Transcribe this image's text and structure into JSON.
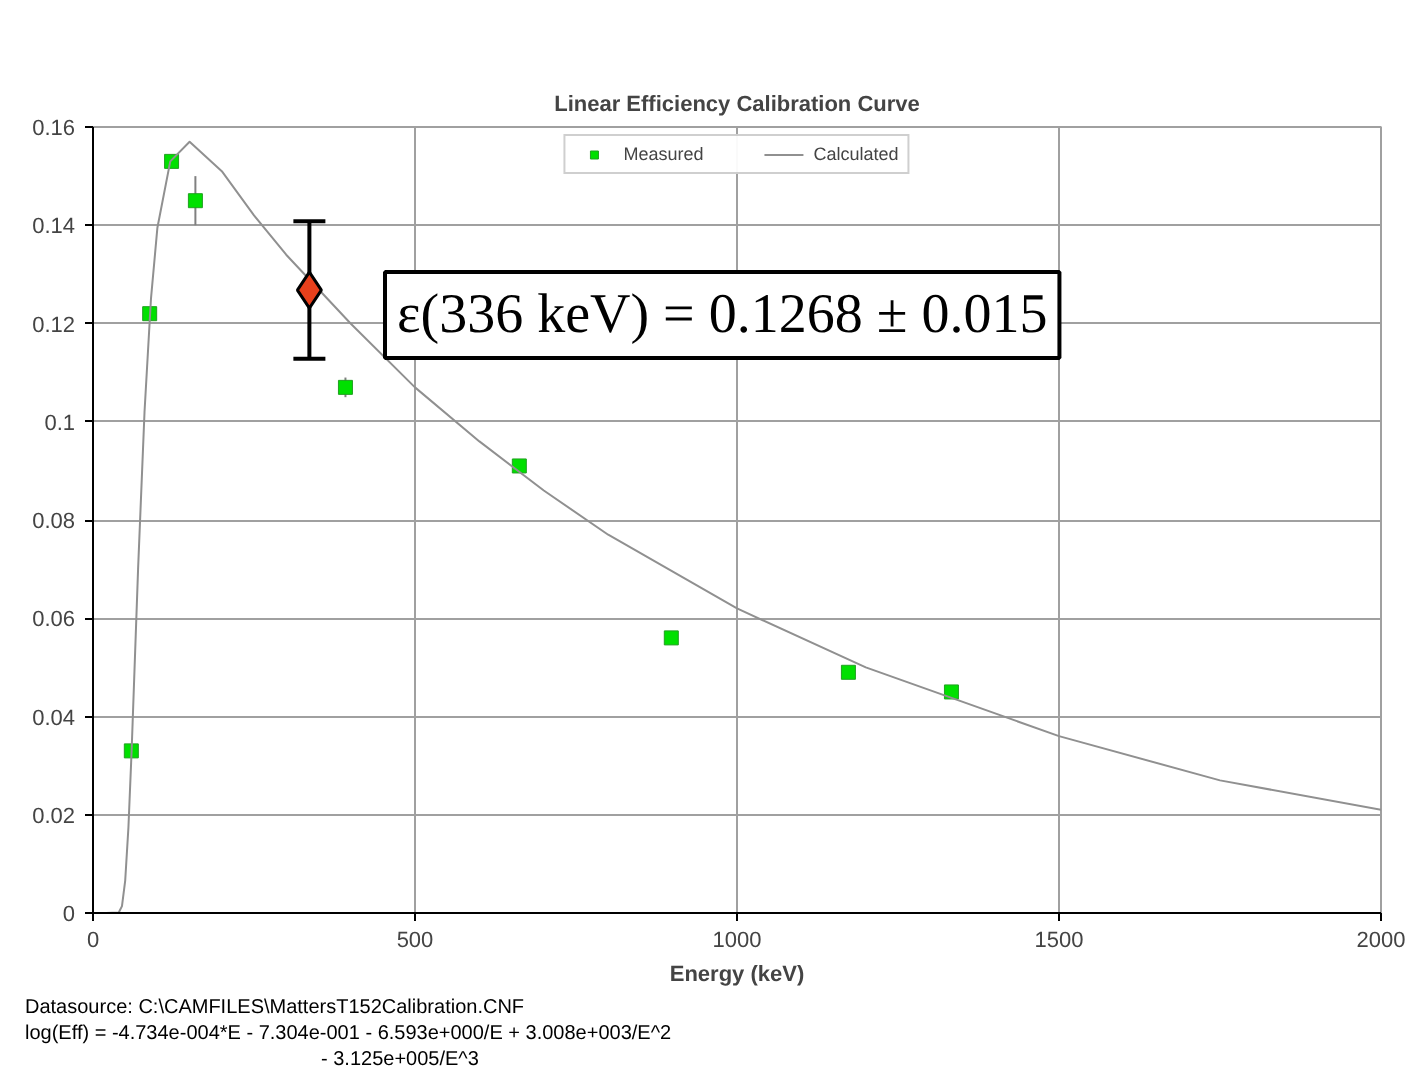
{
  "chart_data": {
    "type": "scatter",
    "title": "Linear Efficiency Calibration Curve",
    "xlabel": "Energy (keV)",
    "xlim": [
      0,
      2000
    ],
    "xticks": [
      0,
      500,
      1000,
      1500,
      2000
    ],
    "ylim": [
      0,
      0.16
    ],
    "yticks": [
      0,
      0.02,
      0.04,
      0.06,
      0.08,
      0.1,
      0.12,
      0.14,
      0.16
    ],
    "grid": true,
    "legend": "top",
    "series": [
      {
        "name": "Measured",
        "marker": "square",
        "color": "#00e000",
        "x": [
          59.5,
          88,
          122,
          159,
          392,
          662,
          898,
          1173,
          1333
        ],
        "values": [
          0.033,
          0.122,
          0.153,
          0.145,
          0.107,
          0.091,
          0.056,
          0.049,
          0.045
        ],
        "errors": [
          null,
          null,
          null,
          0.005,
          0.002,
          null,
          null,
          null,
          null
        ]
      },
      {
        "name": "Calculated",
        "type": "line",
        "marker": "none",
        "color": "#909090",
        "x": [
          20,
          40,
          45,
          50,
          55,
          60,
          70,
          80,
          90,
          100,
          120,
          150,
          200,
          250,
          300,
          400,
          500,
          600,
          700,
          800,
          1000,
          1200,
          1500,
          1750,
          2000
        ],
        "values": [
          0,
          0.0001,
          0.0014,
          0.0066,
          0.0174,
          0.0331,
          0.07,
          0.102,
          0.125,
          0.1395,
          0.153,
          0.157,
          0.151,
          0.142,
          0.134,
          0.12,
          0.107,
          0.096,
          0.086,
          0.077,
          0.062,
          0.05,
          0.036,
          0.027,
          0.021
        ]
      },
      {
        "marker": "diamond",
        "color": "#e8401c",
        "x": [
          336
        ],
        "values": [
          0.1268
        ],
        "errors": [
          0.014
        ]
      }
    ],
    "annotations": [
      "ε(336 keV) = 0.1268 ± 0.015",
      "Datasource:  C:\\CAMFILES\\MattersT152Calibration.CNF",
      "log(Eff) = -4.734e-004*E    - 7.304e-001         - 6.593e+000/E      + 3.008e+003/E^2",
      "- 3.125e+005/E^3"
    ]
  }
}
